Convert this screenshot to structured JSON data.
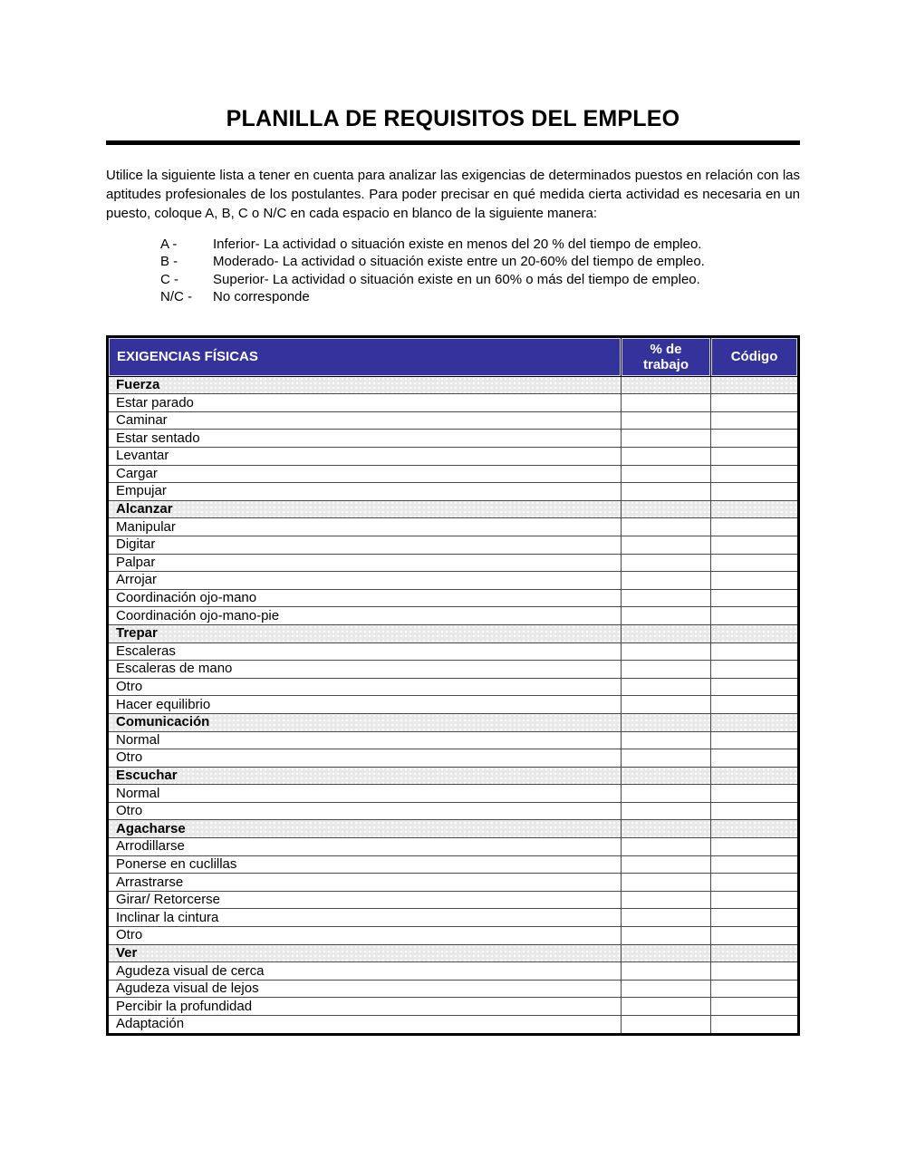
{
  "document": {
    "title": "PLANILLA DE REQUISITOS DEL EMPLEO",
    "intro": "Utilice la siguiente lista a tener en cuenta para analizar las exigencias de determinados puestos en relación con las aptitudes profesionales de los postulantes. Para poder precisar en qué medida cierta actividad es necesaria en un puesto, coloque A, B, C o N/C en cada espacio en blanco de la siguiente manera:",
    "legend": [
      {
        "code": "A -",
        "description": "Inferior- La actividad o situación existe en menos del 20 % del tiempo de empleo."
      },
      {
        "code": "B -",
        "description": "Moderado- La actividad o situación existe entre un 20-60% del tiempo de empleo."
      },
      {
        "code": "C -",
        "description": "Superior- La actividad o situación existe en un 60% o más del tiempo de empleo."
      },
      {
        "code": "N/C -",
        "description": "No corresponde"
      }
    ]
  },
  "table": {
    "columns": [
      "EXIGENCIAS FÍSICAS",
      "% de trabajo",
      "Código"
    ],
    "rows": [
      {
        "label": "Fuerza",
        "section": true
      },
      {
        "label": "Estar parado",
        "section": false
      },
      {
        "label": "Caminar",
        "section": false
      },
      {
        "label": "Estar sentado",
        "section": false
      },
      {
        "label": "Levantar",
        "section": false
      },
      {
        "label": "Cargar",
        "section": false
      },
      {
        "label": "Empujar",
        "section": false
      },
      {
        "label": "Alcanzar",
        "section": true
      },
      {
        "label": "Manipular",
        "section": false
      },
      {
        "label": "Digitar",
        "section": false
      },
      {
        "label": "Palpar",
        "section": false
      },
      {
        "label": "Arrojar",
        "section": false
      },
      {
        "label": "Coordinación ojo-mano",
        "section": false
      },
      {
        "label": "Coordinación ojo-mano-pie",
        "section": false
      },
      {
        "label": "Trepar",
        "section": true
      },
      {
        "label": "Escaleras",
        "section": false
      },
      {
        "label": "Escaleras de mano",
        "section": false
      },
      {
        "label": "Otro",
        "section": false
      },
      {
        "label": "Hacer equilibrio",
        "section": false
      },
      {
        "label": "Comunicación",
        "section": true
      },
      {
        "label": "Normal",
        "section": false
      },
      {
        "label": "Otro",
        "section": false
      },
      {
        "label": "Escuchar",
        "section": true
      },
      {
        "label": "Normal",
        "section": false
      },
      {
        "label": "Otro",
        "section": false
      },
      {
        "label": "Agacharse",
        "section": true
      },
      {
        "label": "Arrodillarse",
        "section": false
      },
      {
        "label": "Ponerse en cuclillas",
        "section": false
      },
      {
        "label": "Arrastrarse",
        "section": false
      },
      {
        "label": "Girar/ Retorcerse",
        "section": false
      },
      {
        "label": "Inclinar la cintura",
        "section": false
      },
      {
        "label": "Otro",
        "section": false
      },
      {
        "label": "Ver",
        "section": true
      },
      {
        "label": "Agudeza visual de cerca",
        "section": false
      },
      {
        "label": "Agudeza visual de lejos",
        "section": false
      },
      {
        "label": "Percibir la profundidad",
        "section": false
      },
      {
        "label": "Adaptación",
        "section": false
      }
    ]
  },
  "colors": {
    "header_bg": "#33339B",
    "header_text": "#ffffff",
    "section_bg": "#e9e9e9",
    "rule": "#000000"
  }
}
